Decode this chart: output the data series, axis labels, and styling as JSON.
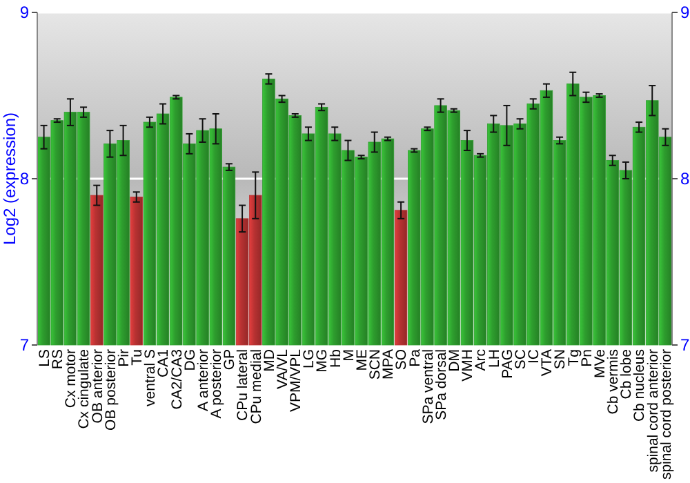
{
  "chart_data": {
    "type": "bar",
    "ylabel": "Log2 (expression)",
    "categories": [
      "LS",
      "RS",
      "Cx motor",
      "Cx cingulate",
      "OB anterior",
      "OB posterior",
      "Pir",
      "Tu",
      "ventral S",
      "CA1",
      "CA2/CA3",
      "DG",
      "A anterior",
      "A posterior",
      "GP",
      "CPu lateral",
      "CPu medial",
      "MD",
      "VA/VL",
      "VPM/VPL",
      "LG",
      "MG",
      "Hb",
      "M",
      "ME",
      "SCN",
      "MPA",
      "SO",
      "Pa",
      "SPa ventral",
      "SPa dorsal",
      "DM",
      "VMH",
      "Arc",
      "LH",
      "PAG",
      "SC",
      "IC",
      "VTA",
      "SN",
      "Tg",
      "Pn",
      "MVe",
      "Cb vermis",
      "Cb lobe",
      "Cb nucleus",
      "spinal cord anterior",
      "spinal cord posterior"
    ],
    "values": [
      8.25,
      8.35,
      8.4,
      8.4,
      7.9,
      8.21,
      8.23,
      7.89,
      8.34,
      8.39,
      8.49,
      8.21,
      8.29,
      8.3,
      8.07,
      7.76,
      7.9,
      8.6,
      8.48,
      8.38,
      8.27,
      8.43,
      8.27,
      8.17,
      8.13,
      8.22,
      8.24,
      7.81,
      8.17,
      8.3,
      8.44,
      8.41,
      8.23,
      8.14,
      8.33,
      8.32,
      8.33,
      8.45,
      8.53,
      8.23,
      8.57,
      8.49,
      8.5,
      8.11,
      8.05,
      8.31,
      8.47,
      8.25
    ],
    "errors": [
      0.07,
      0.01,
      0.08,
      0.03,
      0.06,
      0.08,
      0.09,
      0.03,
      0.03,
      0.06,
      0.01,
      0.06,
      0.07,
      0.09,
      0.02,
      0.08,
      0.14,
      0.03,
      0.02,
      0.01,
      0.04,
      0.02,
      0.04,
      0.06,
      0.01,
      0.06,
      0.01,
      0.05,
      0.01,
      0.01,
      0.04,
      0.01,
      0.06,
      0.01,
      0.05,
      0.12,
      0.03,
      0.03,
      0.04,
      0.02,
      0.07,
      0.03,
      0.01,
      0.03,
      0.05,
      0.03,
      0.09,
      0.05
    ],
    "colors": [
      "#2e9e2e",
      "#2e9e2e",
      "#2e9e2e",
      "#2e9e2e",
      "#b83232",
      "#2e9e2e",
      "#2e9e2e",
      "#b83232",
      "#2e9e2e",
      "#2e9e2e",
      "#2e9e2e",
      "#2e9e2e",
      "#2e9e2e",
      "#2e9e2e",
      "#2e9e2e",
      "#b83232",
      "#b83232",
      "#2e9e2e",
      "#2e9e2e",
      "#2e9e2e",
      "#2e9e2e",
      "#2e9e2e",
      "#2e9e2e",
      "#2e9e2e",
      "#2e9e2e",
      "#2e9e2e",
      "#2e9e2e",
      "#b83232",
      "#2e9e2e",
      "#2e9e2e",
      "#2e9e2e",
      "#2e9e2e",
      "#2e9e2e",
      "#2e9e2e",
      "#2e9e2e",
      "#2e9e2e",
      "#2e9e2e",
      "#2e9e2e",
      "#2e9e2e",
      "#2e9e2e",
      "#2e9e2e",
      "#2e9e2e",
      "#2e9e2e",
      "#2e9e2e",
      "#2e9e2e",
      "#2e9e2e",
      "#2e9e2e",
      "#2e9e2e"
    ],
    "ylim": [
      7,
      9
    ],
    "yticks": [
      7,
      8,
      9
    ],
    "y2lim": [
      7,
      9
    ],
    "y2ticks": [
      7,
      8,
      9
    ],
    "grid": "y"
  }
}
